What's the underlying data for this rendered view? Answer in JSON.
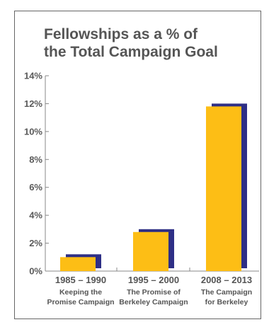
{
  "chart_data": {
    "type": "bar",
    "title_lines": [
      "Fellowships as a % of",
      "the Total Campaign Goal"
    ],
    "categories": [
      {
        "label": "1985 – 1990",
        "sub": [
          "Keeping the",
          "Promise Campaign"
        ]
      },
      {
        "label": "1995 – 2000",
        "sub": [
          "The Promise of",
          "Berkeley Campaign"
        ]
      },
      {
        "label": "2008 – 2013",
        "sub": [
          "The Campaign",
          "for Berkeley"
        ]
      }
    ],
    "values": [
      1.0,
      2.8,
      11.8
    ],
    "y_ticks": [
      "0%",
      "2%",
      "4%",
      "6%",
      "8%",
      "10%",
      "12%",
      "14%"
    ],
    "ylim": [
      0,
      14
    ],
    "xlabel": "",
    "ylabel": "",
    "grid": false,
    "colors": {
      "bar": "#fdbe15",
      "bar_shadow": "#2e2f86",
      "text": "#555555",
      "axis": "#888888"
    }
  }
}
